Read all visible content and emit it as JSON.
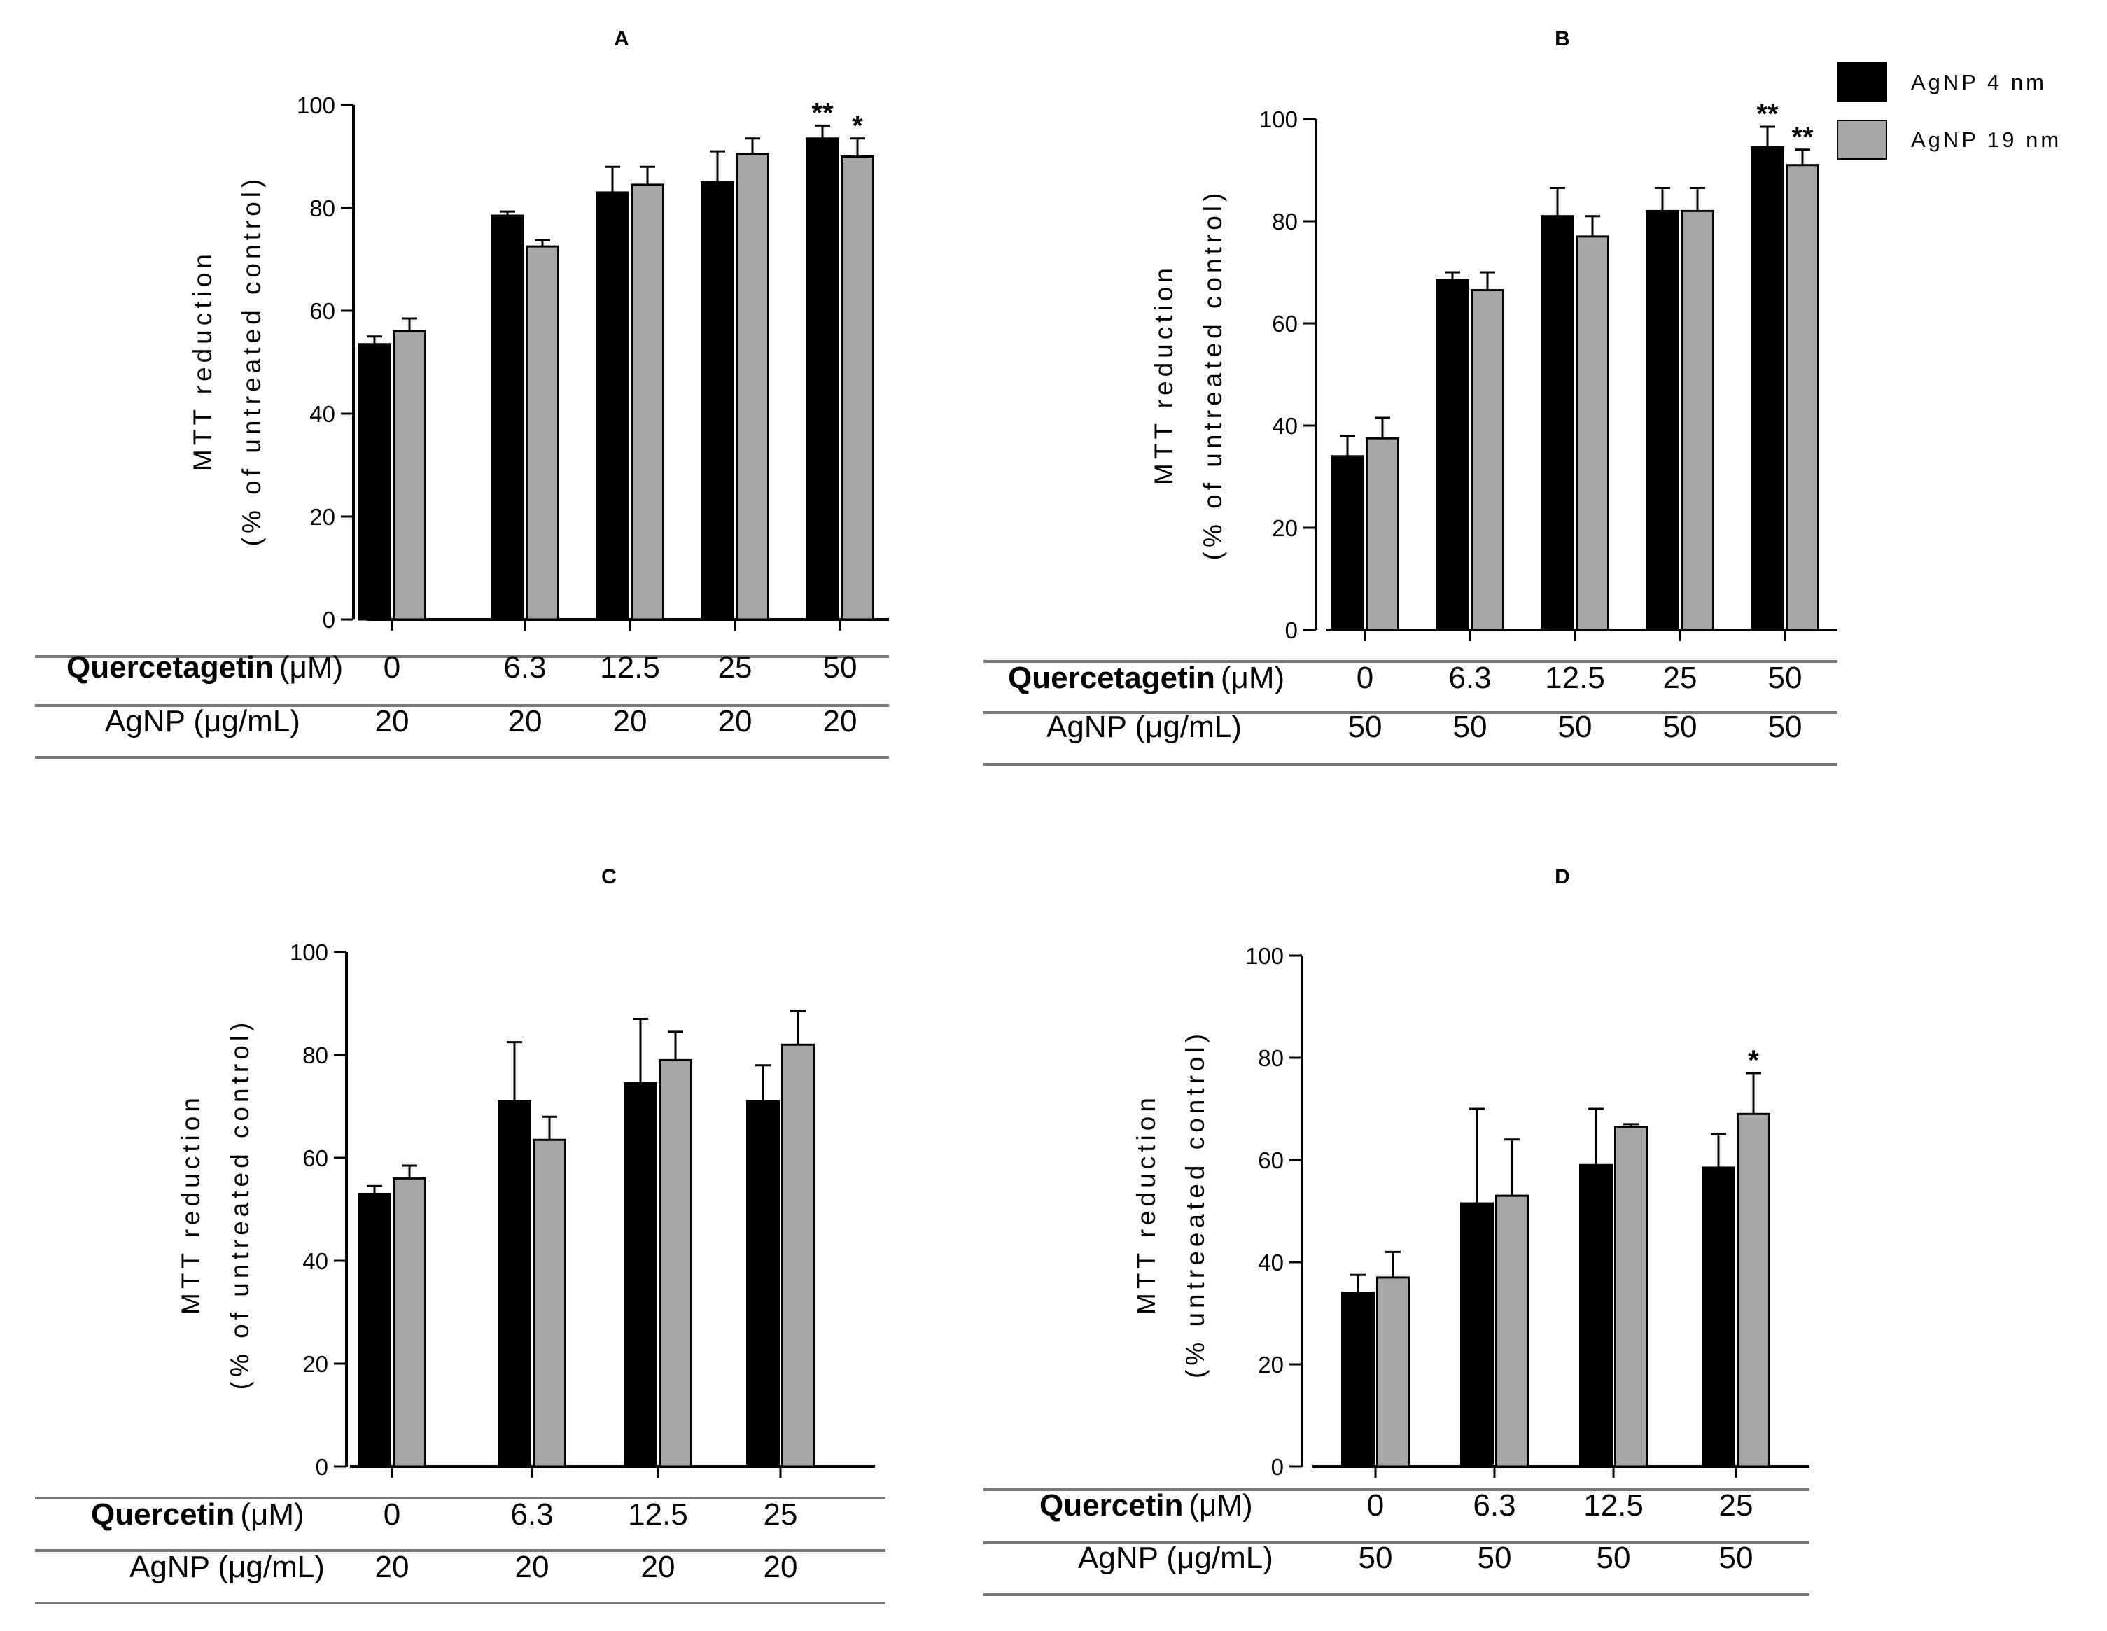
{
  "legend": [
    {
      "name": "AgNP 4 nm",
      "color": "#000000"
    },
    {
      "name": "AgNP 19 nm",
      "color": "#a6a6a6"
    }
  ],
  "chart_data": [
    {
      "panel": "A",
      "type": "bar",
      "ylabel_line1": "MTT reduction",
      "ylabel_line2": "(% of untreated control)",
      "yticks": [
        0,
        20,
        40,
        60,
        80,
        100
      ],
      "ylim": [
        0,
        100
      ],
      "categories": [
        "0",
        "6.3",
        "12.5",
        "25",
        "50"
      ],
      "series": [
        {
          "name": "AgNP 4 nm",
          "values": [
            53.5,
            78.5,
            83,
            85,
            93.5
          ],
          "errors": [
            1.5,
            0.8,
            5,
            6,
            2.5
          ]
        },
        {
          "name": "AgNP 19 nm",
          "values": [
            56,
            72.5,
            84.5,
            90.5,
            90
          ],
          "errors": [
            2.5,
            1.2,
            3.5,
            3,
            3.5
          ]
        }
      ],
      "annotations": [
        {
          "category": "50",
          "series": 0,
          "text": "**"
        },
        {
          "category": "50",
          "series": 1,
          "text": "*"
        }
      ],
      "row1": {
        "compound": "Quercetagetin",
        "unit": "(μM)",
        "values": [
          "0",
          "6.3",
          "12.5",
          "25",
          "50"
        ]
      },
      "row2": {
        "label": "AgNP (μg/mL)",
        "values": [
          "20",
          "20",
          "20",
          "20",
          "20"
        ]
      }
    },
    {
      "panel": "B",
      "type": "bar",
      "ylabel_line1": "MTT reduction",
      "ylabel_line2": "(% of untreated control)",
      "yticks": [
        0,
        20,
        40,
        60,
        80,
        100
      ],
      "ylim": [
        0,
        100
      ],
      "categories": [
        "0",
        "6.3",
        "12.5",
        "25",
        "50"
      ],
      "series": [
        {
          "name": "AgNP 4 nm",
          "values": [
            34,
            68.5,
            81,
            82,
            94.5
          ],
          "errors": [
            4,
            1.5,
            5.5,
            4.5,
            4
          ]
        },
        {
          "name": "AgNP 19 nm",
          "values": [
            37.5,
            66.5,
            77,
            82,
            91
          ],
          "errors": [
            4,
            3.5,
            4,
            4.5,
            3
          ]
        }
      ],
      "annotations": [
        {
          "category": "50",
          "series": 0,
          "text": "**"
        },
        {
          "category": "50",
          "series": 1,
          "text": "**"
        }
      ],
      "row1": {
        "compound": "Quercetagetin",
        "unit": "(μM)",
        "values": [
          "0",
          "6.3",
          "12.5",
          "25",
          "50"
        ]
      },
      "row2": {
        "label": "AgNP (μg/mL)",
        "values": [
          "50",
          "50",
          "50",
          "50",
          "50"
        ]
      }
    },
    {
      "panel": "C",
      "type": "bar",
      "ylabel_line1": "MTT reduction",
      "ylabel_line2": "(% of untreated control)",
      "yticks": [
        0,
        20,
        40,
        60,
        80,
        100
      ],
      "ylim": [
        0,
        100
      ],
      "categories": [
        "0",
        "6.3",
        "12.5",
        "25"
      ],
      "series": [
        {
          "name": "AgNP 4 nm",
          "values": [
            53,
            71,
            74.5,
            71
          ],
          "errors": [
            1.5,
            11.5,
            12.5,
            7
          ]
        },
        {
          "name": "AgNP 19 nm",
          "values": [
            56,
            63.5,
            79,
            82
          ],
          "errors": [
            2.5,
            4.5,
            5.5,
            6.5
          ]
        }
      ],
      "annotations": [],
      "row1": {
        "compound": "Quercetin",
        "unit": "(μM)",
        "values": [
          "0",
          "6.3",
          "12.5",
          "25"
        ]
      },
      "row2": {
        "label": "AgNP (μg/mL)",
        "values": [
          "20",
          "20",
          "20",
          "20"
        ]
      }
    },
    {
      "panel": "D",
      "type": "bar",
      "ylabel_line1": "MTT reduction",
      "ylabel_line2": "(% untreeated control)",
      "yticks": [
        0,
        20,
        40,
        60,
        80,
        100
      ],
      "ylim": [
        0,
        100
      ],
      "categories": [
        "0",
        "6.3",
        "12.5",
        "25"
      ],
      "series": [
        {
          "name": "AgNP 4 nm",
          "values": [
            34,
            51.5,
            59,
            58.5
          ],
          "errors": [
            3.5,
            18.5,
            11,
            6.5
          ]
        },
        {
          "name": "AgNP 19 nm",
          "values": [
            37,
            53,
            66.5,
            69
          ],
          "errors": [
            5,
            11,
            0.5,
            8
          ]
        }
      ],
      "annotations": [
        {
          "category": "25",
          "series": 1,
          "text": "*"
        }
      ],
      "row1": {
        "compound": "Quercetin",
        "unit": "(μM)",
        "values": [
          "0",
          "6.3",
          "12.5",
          "25"
        ]
      },
      "row2": {
        "label": "AgNP (μg/mL)",
        "values": [
          "50",
          "50",
          "50",
          "50"
        ]
      }
    }
  ]
}
